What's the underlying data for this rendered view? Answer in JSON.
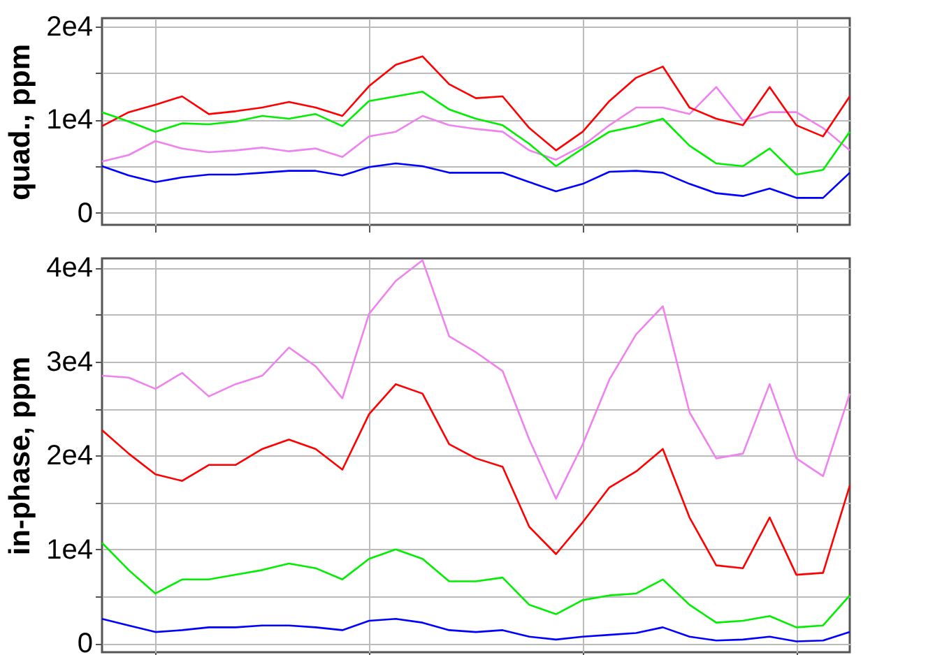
{
  "chart_data": [
    {
      "type": "line",
      "ylabel": "quad., ppm",
      "categories": [
        null,
        null,
        null,
        null,
        null,
        null,
        null,
        null,
        null,
        null,
        null,
        null,
        null,
        null,
        null,
        null,
        null,
        null,
        null,
        null,
        null,
        null,
        null,
        null,
        null,
        null,
        null,
        null,
        null
      ],
      "ylim": [
        -1300,
        20900
      ],
      "yticks": [
        0,
        {
          "value": 5000,
          "label": null
        },
        {
          "value": 10000,
          "label": "1e4"
        },
        {
          "value": 15000,
          "label": null
        },
        {
          "value": 20000,
          "label": "2e4"
        }
      ],
      "grid": true,
      "tick_labels": "y",
      "series": [
        {
          "color": "#ee82ee",
          "values": [
            5500,
            6200,
            7700,
            6900,
            6500,
            6700,
            7000,
            6600,
            6900,
            6000,
            8200,
            8700,
            10400,
            9400,
            9000,
            8700,
            6700,
            5700,
            7200,
            9400,
            11300,
            11300,
            10600,
            13500,
            9900,
            10800,
            10800,
            9100,
            6700
          ]
        },
        {
          "color": "#ff0000",
          "values": [
            9300,
            10800,
            11600,
            12500,
            10600,
            10900,
            11300,
            11900,
            11300,
            10400,
            13600,
            15900,
            16800,
            13800,
            12300,
            12500,
            9100,
            6700,
            8700,
            12000,
            14500,
            15700,
            11300,
            10100,
            9400,
            13500,
            9400,
            8200,
            12500
          ]
        },
        {
          "color": "#00ee00",
          "values": [
            10800,
            9800,
            8700,
            9600,
            9500,
            9800,
            10400,
            10100,
            10600,
            9300,
            12000,
            12500,
            13000,
            11100,
            10100,
            9400,
            7400,
            5000,
            6900,
            8700,
            9300,
            10100,
            7200,
            5300,
            5000,
            6900,
            4100,
            4600,
            8700
          ]
        },
        {
          "color": "#0000ff",
          "values": [
            5000,
            4000,
            3300,
            3800,
            4100,
            4100,
            4300,
            4500,
            4500,
            4000,
            4900,
            5300,
            5000,
            4300,
            4300,
            4300,
            3300,
            2300,
            3100,
            4400,
            4500,
            4300,
            3100,
            2100,
            1800,
            2600,
            1600,
            1600,
            4300
          ]
        }
      ]
    },
    {
      "type": "line",
      "ylabel": "in-phase, ppm",
      "categories": [
        null,
        null,
        null,
        null,
        null,
        null,
        null,
        null,
        null,
        null,
        null,
        null,
        null,
        null,
        null,
        null,
        null,
        null,
        null,
        null,
        null,
        null,
        null,
        null,
        null,
        null,
        null,
        null,
        null
      ],
      "ylim": [
        -950,
        41000
      ],
      "yticks": [
        0,
        {
          "value": 5000,
          "label": null
        },
        {
          "value": 10000,
          "label": "1e4"
        },
        {
          "value": 15000,
          "label": null
        },
        {
          "value": 20000,
          "label": "2e4"
        },
        {
          "value": 25000,
          "label": null
        },
        {
          "value": 30000,
          "label": "3e4"
        },
        {
          "value": 35000,
          "label": null
        },
        {
          "value": 40000,
          "label": "4e4"
        }
      ],
      "grid": true,
      "tick_labels": "y",
      "series": [
        {
          "color": "#ee82ee",
          "values": [
            28500,
            28300,
            27100,
            28800,
            26300,
            27600,
            28500,
            31500,
            29500,
            26100,
            35100,
            38600,
            40800,
            32700,
            31000,
            29000,
            21700,
            15400,
            21200,
            28100,
            32900,
            35900,
            24600,
            19700,
            20200,
            27600,
            19700,
            17800,
            26600
          ]
        },
        {
          "color": "#ff0000",
          "values": [
            22700,
            20200,
            18000,
            17300,
            19000,
            19000,
            20700,
            21700,
            20700,
            18500,
            24400,
            27600,
            26600,
            21200,
            19700,
            18800,
            12400,
            9500,
            12900,
            16600,
            18300,
            20700,
            13400,
            8300,
            8000,
            13400,
            7300,
            7500,
            16800
          ]
        },
        {
          "color": "#00ee00",
          "values": [
            10700,
            7800,
            5300,
            6800,
            6800,
            7300,
            7800,
            8500,
            8000,
            6800,
            9000,
            10000,
            9000,
            6600,
            6600,
            7000,
            4100,
            3100,
            4600,
            5100,
            5300,
            6800,
            4100,
            2200,
            2400,
            2900,
            1700,
            1900,
            5100
          ]
        },
        {
          "color": "#0000ff",
          "values": [
            2600,
            1900,
            1200,
            1400,
            1700,
            1700,
            1900,
            1900,
            1700,
            1400,
            2400,
            2600,
            2200,
            1400,
            1200,
            1400,
            700,
            400,
            700,
            900,
            1100,
            1700,
            700,
            300,
            400,
            700,
            200,
            300,
            1200
          ]
        }
      ]
    }
  ]
}
